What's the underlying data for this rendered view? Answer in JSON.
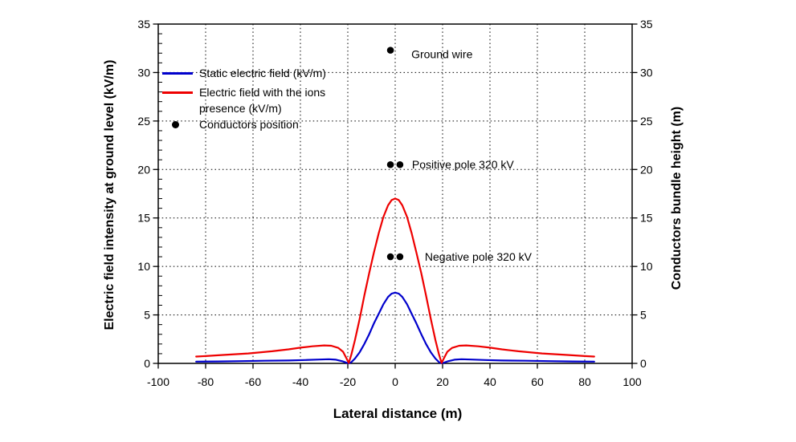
{
  "chart_data": {
    "type": "line",
    "title": "",
    "xlabel": "Lateral distance (m)",
    "ylabel_left": "Electric field intensity at ground level (kV/m)",
    "ylabel_right": "Conductors bundle height (m)",
    "xlim": [
      -100,
      100
    ],
    "ylim": [
      0,
      35
    ],
    "x_ticks": [
      -100,
      -80,
      -60,
      -40,
      -20,
      0,
      20,
      40,
      60,
      80,
      100
    ],
    "y_ticks": [
      0,
      5,
      10,
      15,
      20,
      25,
      30,
      35
    ],
    "grid": "dotted",
    "legend_position": "top-left-inside",
    "legend": [
      {
        "label": "Static electric field (kV/m)",
        "type": "line",
        "color": "#0000CC"
      },
      {
        "label": "Electric field with the ions presence (kV/m)",
        "type": "line",
        "color": "#EE0000"
      },
      {
        "label": "Conductors position",
        "type": "dot",
        "color": "#000000"
      }
    ],
    "series": [
      {
        "name": "Static electric field (kV/m)",
        "color": "#0000CC",
        "points": [
          [
            -84,
            0.18
          ],
          [
            -75,
            0.2
          ],
          [
            -65,
            0.23
          ],
          [
            -55,
            0.27
          ],
          [
            -45,
            0.3
          ],
          [
            -38,
            0.35
          ],
          [
            -32,
            0.4
          ],
          [
            -28,
            0.43
          ],
          [
            -25,
            0.38
          ],
          [
            -22,
            0.2
          ],
          [
            -20.5,
            0.07
          ],
          [
            -19.6,
            0.02
          ],
          [
            -18.5,
            0.12
          ],
          [
            -17,
            0.5
          ],
          [
            -15,
            1.15
          ],
          [
            -13,
            2.0
          ],
          [
            -11,
            3.0
          ],
          [
            -9,
            4.1
          ],
          [
            -7,
            5.1
          ],
          [
            -5,
            6.1
          ],
          [
            -3,
            6.85
          ],
          [
            -1.5,
            7.2
          ],
          [
            0,
            7.3
          ],
          [
            1.5,
            7.2
          ],
          [
            3,
            6.85
          ],
          [
            5,
            6.1
          ],
          [
            7,
            5.1
          ],
          [
            9,
            4.1
          ],
          [
            11,
            3.0
          ],
          [
            13,
            2.0
          ],
          [
            15,
            1.15
          ],
          [
            17,
            0.5
          ],
          [
            18.5,
            0.12
          ],
          [
            19.6,
            0.02
          ],
          [
            20.5,
            0.07
          ],
          [
            22,
            0.2
          ],
          [
            25,
            0.38
          ],
          [
            28,
            0.43
          ],
          [
            32,
            0.4
          ],
          [
            38,
            0.35
          ],
          [
            45,
            0.3
          ],
          [
            55,
            0.27
          ],
          [
            65,
            0.23
          ],
          [
            75,
            0.2
          ],
          [
            84,
            0.18
          ]
        ]
      },
      {
        "name": "Electric field with the ions presence (kV/m)",
        "color": "#EE0000",
        "points": [
          [
            -84,
            0.7
          ],
          [
            -80,
            0.75
          ],
          [
            -72,
            0.88
          ],
          [
            -62,
            1.03
          ],
          [
            -52,
            1.25
          ],
          [
            -45,
            1.45
          ],
          [
            -40,
            1.62
          ],
          [
            -35,
            1.76
          ],
          [
            -30,
            1.85
          ],
          [
            -27,
            1.82
          ],
          [
            -24,
            1.6
          ],
          [
            -22,
            1.2
          ],
          [
            -20.5,
            0.5
          ],
          [
            -19.6,
            0.05
          ],
          [
            -18.5,
            0.9
          ],
          [
            -17,
            2.4
          ],
          [
            -15,
            4.6
          ],
          [
            -13,
            7.0
          ],
          [
            -11,
            9.3
          ],
          [
            -9,
            11.4
          ],
          [
            -7,
            13.4
          ],
          [
            -5,
            15.1
          ],
          [
            -3,
            16.3
          ],
          [
            -1.5,
            16.85
          ],
          [
            0,
            17
          ],
          [
            1.5,
            16.85
          ],
          [
            3,
            16.3
          ],
          [
            5,
            15.1
          ],
          [
            7,
            13.4
          ],
          [
            9,
            11.4
          ],
          [
            11,
            9.3
          ],
          [
            13,
            7.0
          ],
          [
            15,
            4.6
          ],
          [
            17,
            2.4
          ],
          [
            18.5,
            0.9
          ],
          [
            19.6,
            0.05
          ],
          [
            20.5,
            0.5
          ],
          [
            22,
            1.2
          ],
          [
            24,
            1.6
          ],
          [
            27,
            1.82
          ],
          [
            30,
            1.85
          ],
          [
            35,
            1.76
          ],
          [
            40,
            1.62
          ],
          [
            45,
            1.45
          ],
          [
            52,
            1.25
          ],
          [
            62,
            1.03
          ],
          [
            72,
            0.88
          ],
          [
            80,
            0.75
          ],
          [
            84,
            0.7
          ]
        ]
      }
    ],
    "markers": [
      {
        "label": "Ground wire",
        "color": "#000000",
        "points": [
          [
            -2,
            32.3
          ]
        ]
      },
      {
        "label": "Positive pole 320 kV",
        "color": "#000000",
        "points": [
          [
            -2,
            20.5
          ],
          [
            2,
            20.5
          ]
        ]
      },
      {
        "label": "Negative pole 320 kV",
        "color": "#000000",
        "points": [
          [
            -2,
            11
          ],
          [
            2,
            11
          ]
        ]
      }
    ]
  }
}
